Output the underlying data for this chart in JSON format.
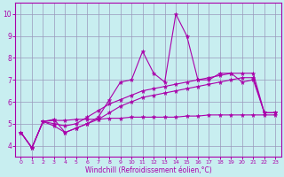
{
  "xlabel": "Windchill (Refroidissement éolien,°C)",
  "x": [
    0,
    1,
    2,
    3,
    4,
    5,
    6,
    7,
    8,
    9,
    10,
    11,
    12,
    13,
    14,
    15,
    16,
    17,
    18,
    19,
    20,
    21,
    22,
    23
  ],
  "line_volatile": [
    4.6,
    3.9,
    5.1,
    5.2,
    4.6,
    4.8,
    5.0,
    5.3,
    6.1,
    6.9,
    7.0,
    8.3,
    7.3,
    6.9,
    10.0,
    9.0,
    7.0,
    7.0,
    7.3,
    7.3,
    6.9,
    7.0,
    5.5,
    5.5
  ],
  "line_flat": [
    4.6,
    3.9,
    5.1,
    5.15,
    5.15,
    5.2,
    5.2,
    5.2,
    5.25,
    5.25,
    5.3,
    5.3,
    5.3,
    5.3,
    5.3,
    5.35,
    5.35,
    5.4,
    5.4,
    5.4,
    5.4,
    5.4,
    5.4,
    5.4
  ],
  "line_trend_low": [
    4.6,
    3.9,
    5.1,
    4.9,
    4.6,
    4.8,
    5.0,
    5.2,
    5.5,
    5.8,
    6.0,
    6.2,
    6.3,
    6.4,
    6.5,
    6.6,
    6.7,
    6.8,
    6.9,
    7.0,
    7.1,
    7.1,
    5.5,
    5.5
  ],
  "line_trend_high": [
    4.6,
    3.9,
    5.1,
    5.0,
    4.9,
    5.0,
    5.3,
    5.6,
    5.9,
    6.1,
    6.3,
    6.5,
    6.6,
    6.7,
    6.8,
    6.9,
    7.0,
    7.1,
    7.2,
    7.3,
    7.3,
    7.3,
    5.5,
    5.5
  ],
  "color": "#aa00aa",
  "bg_color": "#c8eef0",
  "grid_color": "#9999bb",
  "ylim": [
    3.5,
    10.5
  ],
  "xlim": [
    -0.5,
    23.5
  ],
  "yticks": [
    4,
    5,
    6,
    7,
    8,
    9,
    10
  ],
  "xticks": [
    0,
    1,
    2,
    3,
    4,
    5,
    6,
    7,
    8,
    9,
    10,
    11,
    12,
    13,
    14,
    15,
    16,
    17,
    18,
    19,
    20,
    21,
    22,
    23
  ],
  "marker": "*",
  "markersize": 3.5,
  "linewidth": 0.8
}
